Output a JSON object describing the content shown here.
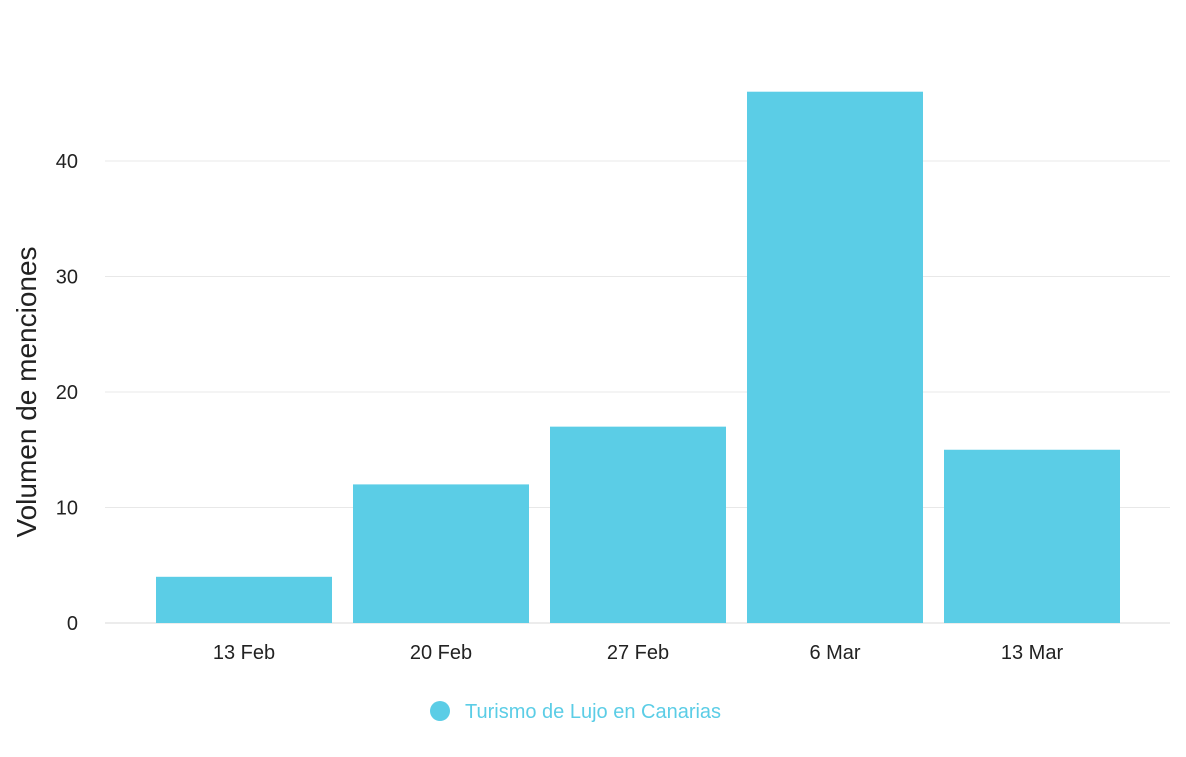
{
  "chart_data": {
    "type": "bar",
    "categories": [
      "13 Feb",
      "20 Feb",
      "27 Feb",
      "6 Mar",
      "13 Mar"
    ],
    "series": [
      {
        "name": "Turismo de Lujo en Canarias",
        "values": [
          4,
          12,
          17,
          46,
          15
        ],
        "color": "#5BCDE6"
      }
    ],
    "title": "",
    "xlabel": "",
    "ylabel": "Volumen de menciones",
    "yticks": [
      0,
      10,
      20,
      30,
      40
    ],
    "ylim": [
      0,
      46
    ],
    "grid": true,
    "legend_position": "bottom-center",
    "colors": {
      "bar": "#5BCDE6",
      "grid": "#e8e8e8",
      "text": "#222222"
    }
  }
}
